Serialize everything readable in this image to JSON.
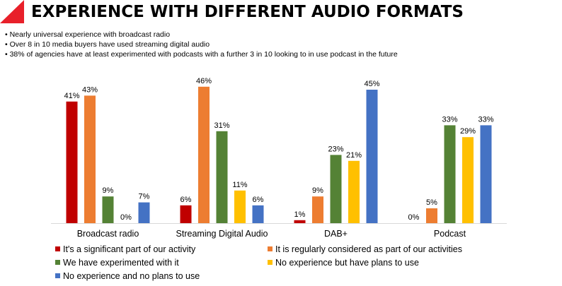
{
  "slide": {
    "title": "EXPERIENCE WITH DIFFERENT AUDIO FORMATS",
    "accent_color": "#e8202a",
    "bullets": [
      "Nearly universal experience with broadcast radio",
      "Over 8 in 10 media buyers have used streaming digital audio",
      "38% of agencies have at least experimented with podcasts with a further 3 in 10 looking to in use podcast in the future"
    ]
  },
  "chart_data": {
    "type": "bar",
    "title": "",
    "xlabel": "",
    "ylabel": "",
    "ylim": [
      0,
      50
    ],
    "grid": false,
    "legend_position": "bottom",
    "categories": [
      "Broadcast radio",
      "Streaming Digital Audio",
      "DAB+",
      "Podcast"
    ],
    "series": [
      {
        "name": "It's a significant part of our activity",
        "color": "#c00000",
        "values": [
          41,
          6,
          1,
          0
        ]
      },
      {
        "name": "It is regularly considered as part of our activities",
        "color": "#ed7d31",
        "values": [
          43,
          46,
          9,
          5
        ]
      },
      {
        "name": "We have experimented with it",
        "color": "#548235",
        "values": [
          9,
          31,
          23,
          33
        ]
      },
      {
        "name": "No experience but have plans to use",
        "color": "#ffc000",
        "values": [
          0,
          11,
          21,
          29
        ]
      },
      {
        "name": "No experience and no plans to use",
        "color": "#4472c4",
        "values": [
          7,
          6,
          45,
          33
        ]
      }
    ],
    "value_suffix": "%"
  }
}
